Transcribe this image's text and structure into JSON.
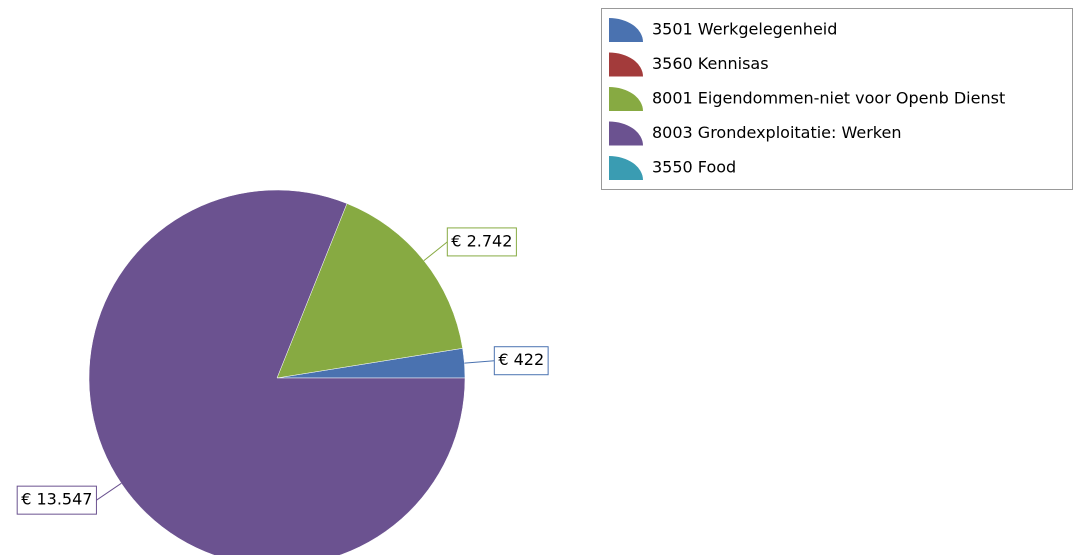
{
  "chart_data": {
    "type": "pie",
    "categories": [
      "3501 Werkgelegenheid",
      "3560 Kennisas",
      "8001 Eigendommen-niet voor Openb Dienst",
      "8003 Grondexploitatie: Werken",
      "3550 Food"
    ],
    "values": [
      422,
      0,
      2742,
      13547,
      0
    ],
    "value_labels": [
      "€ 422",
      null,
      "€ 2.742",
      "€ 13.547",
      null
    ],
    "colors": [
      "#4a72b0",
      "#a33b3b",
      "#87aa42",
      "#6b5290",
      "#3a9cb2"
    ],
    "legend": "top-right"
  }
}
